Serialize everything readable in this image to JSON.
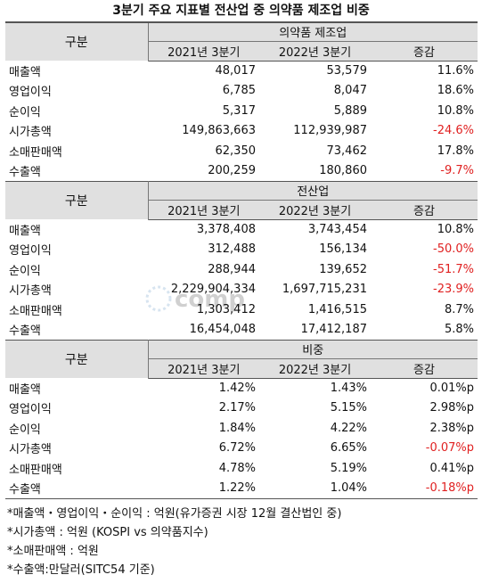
{
  "title": "3분기 주요 지표별 전산업 중 의약품 제조업 비중",
  "col_header": "구분",
  "sections": [
    {
      "name": "의약품 제조업",
      "periods": [
        "2021년 3분기",
        "2022년 3분기",
        "증감"
      ],
      "rows": [
        {
          "label": "매출액",
          "v2021": "48,017",
          "v2022": "53,579",
          "change": "11.6%",
          "neg": false
        },
        {
          "label": "영업이익",
          "v2021": "6,785",
          "v2022": "8,047",
          "change": "18.6%",
          "neg": false
        },
        {
          "label": "순이익",
          "v2021": "5,317",
          "v2022": "5,889",
          "change": "10.8%",
          "neg": false
        },
        {
          "label": "시가총액",
          "v2021": "149,863,663",
          "v2022": "112,939,987",
          "change": "-24.6%",
          "neg": true
        },
        {
          "label": "소매판매액",
          "v2021": "62,350",
          "v2022": "73,462",
          "change": "17.8%",
          "neg": false
        },
        {
          "label": "수출액",
          "v2021": "200,259",
          "v2022": "180,860",
          "change": "-9.7%",
          "neg": true
        }
      ]
    },
    {
      "name": "전산업",
      "periods": [
        "2021년 3분기",
        "2022년 3분기",
        "증감"
      ],
      "rows": [
        {
          "label": "매출액",
          "v2021": "3,378,408",
          "v2022": "3,743,454",
          "change": "10.8%",
          "neg": false
        },
        {
          "label": "영업이익",
          "v2021": "312,488",
          "v2022": "156,134",
          "change": "-50.0%",
          "neg": true
        },
        {
          "label": "순이익",
          "v2021": "288,944",
          "v2022": "139,652",
          "change": "-51.7%",
          "neg": true
        },
        {
          "label": "시가총액",
          "v2021": "2,229,904,334",
          "v2022": "1,697,715,231",
          "change": "-23.9%",
          "neg": true
        },
        {
          "label": "소매판매액",
          "v2021": "1,303,412",
          "v2022": "1,416,515",
          "change": "8.7%",
          "neg": false
        },
        {
          "label": "수출액",
          "v2021": "16,454,048",
          "v2022": "17,412,187",
          "change": "5.8%",
          "neg": false
        }
      ]
    },
    {
      "name": "비중",
      "periods": [
        "2021년 3분기",
        "2022년 3분기",
        "증감"
      ],
      "rows": [
        {
          "label": "매출액",
          "v2021": "1.42%",
          "v2022": "1.43%",
          "change": "0.01%p",
          "neg": false
        },
        {
          "label": "영업이익",
          "v2021": "2.17%",
          "v2022": "5.15%",
          "change": "2.98%p",
          "neg": false
        },
        {
          "label": "순이익",
          "v2021": "1.84%",
          "v2022": "4.22%",
          "change": "2.38%p",
          "neg": false
        },
        {
          "label": "시가총액",
          "v2021": "6.72%",
          "v2022": "6.65%",
          "change": "-0.07%p",
          "neg": true
        },
        {
          "label": "소매판매액",
          "v2021": "4.78%",
          "v2022": "5.19%",
          "change": "0.41%p",
          "neg": false
        },
        {
          "label": "수출액",
          "v2021": "1.22%",
          "v2022": "1.04%",
          "change": "-0.18%p",
          "neg": true
        }
      ]
    }
  ],
  "notes": [
    "*매출액・영업이익・순이익 : 억원(유가증권 시장 12월 결산법인 중)",
    "*시가총액 : 억원 (KOSPI vs 의약품지수)",
    "*소매판매액 : 억원",
    "*수출액:만달러(SITC54 기준)"
  ],
  "watermark": "comp",
  "colors": {
    "header_bg": "#e0e0e0",
    "negative": "#e02020",
    "watermark": "#2a6fb0"
  }
}
